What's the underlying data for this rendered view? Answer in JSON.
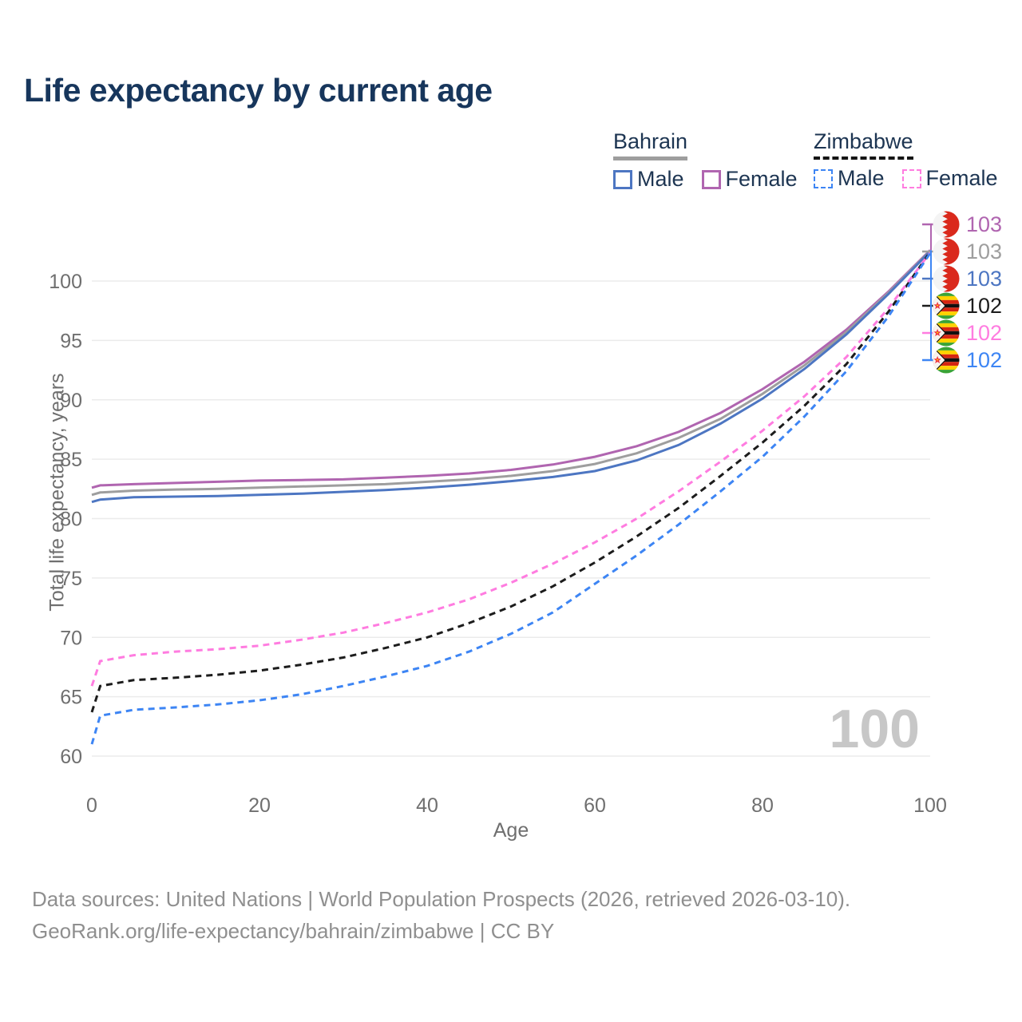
{
  "title": "Life expectancy by current age",
  "legend": {
    "groups": [
      {
        "label": "Bahrain",
        "line_style": "solid",
        "underline_color": "#9e9e9e",
        "items": [
          {
            "label": "Male",
            "color": "#4d76c2",
            "dashed": false
          },
          {
            "label": "Female",
            "color": "#b065b0",
            "dashed": false
          }
        ]
      },
      {
        "label": "Zimbabwe",
        "line_style": "dashed",
        "underline_color": "#141414",
        "items": [
          {
            "label": "Male",
            "color": "#3d85f4",
            "dashed": true
          },
          {
            "label": "Female",
            "color": "#ff7ce0",
            "dashed": true
          }
        ]
      }
    ]
  },
  "watermark": "100",
  "end_labels": [
    {
      "value": "103",
      "color": "#b065b0",
      "flag": "bahrain",
      "series": "Bahrain Female"
    },
    {
      "value": "103",
      "color": "#9e9e9e",
      "flag": "bahrain",
      "series": "Bahrain Total"
    },
    {
      "value": "103",
      "color": "#4d76c2",
      "flag": "bahrain",
      "series": "Bahrain Male"
    },
    {
      "value": "102",
      "color": "#1c1c1c",
      "flag": "zimbabwe",
      "series": "Zimbabwe Total"
    },
    {
      "value": "102",
      "color": "#ff7ce0",
      "flag": "zimbabwe",
      "series": "Zimbabwe Female"
    },
    {
      "value": "102",
      "color": "#3d85f4",
      "flag": "zimbabwe",
      "series": "Zimbabwe Male"
    }
  ],
  "chart_data": {
    "type": "line",
    "title": "Life expectancy by current age",
    "xlabel": "Age",
    "ylabel": "Total life expectancy, years",
    "xlim": [
      0,
      100
    ],
    "ylim": [
      60,
      100
    ],
    "xticks": [
      0,
      20,
      40,
      60,
      80,
      100
    ],
    "yticks": [
      60,
      65,
      70,
      75,
      80,
      85,
      90,
      95,
      100
    ],
    "grid": "horizontal",
    "legend_position": "top-right",
    "x": [
      0,
      1,
      5,
      10,
      15,
      20,
      25,
      30,
      35,
      40,
      45,
      50,
      55,
      60,
      65,
      70,
      75,
      80,
      85,
      90,
      95,
      100
    ],
    "series": [
      {
        "name": "Bahrain Female",
        "color": "#b065b0",
        "dashed": false,
        "end_label": 103,
        "values": [
          82.6,
          82.8,
          82.9,
          83.0,
          83.1,
          83.2,
          83.25,
          83.3,
          83.45,
          83.6,
          83.8,
          84.1,
          84.55,
          85.2,
          86.1,
          87.3,
          88.9,
          90.9,
          93.2,
          95.9,
          99.1,
          102.6
        ]
      },
      {
        "name": "Bahrain Total",
        "color": "#9e9e9e",
        "dashed": false,
        "end_label": 103,
        "values": [
          82.0,
          82.2,
          82.35,
          82.45,
          82.5,
          82.6,
          82.7,
          82.8,
          82.9,
          83.1,
          83.3,
          83.6,
          84.0,
          84.6,
          85.5,
          86.8,
          88.4,
          90.5,
          92.9,
          95.7,
          99.0,
          102.55
        ]
      },
      {
        "name": "Bahrain Male",
        "color": "#4d76c2",
        "dashed": false,
        "end_label": 103,
        "values": [
          81.4,
          81.6,
          81.8,
          81.85,
          81.9,
          82.0,
          82.1,
          82.25,
          82.4,
          82.6,
          82.85,
          83.15,
          83.5,
          84.0,
          84.9,
          86.2,
          88.0,
          90.1,
          92.6,
          95.5,
          98.9,
          102.5
        ]
      },
      {
        "name": "Zimbabwe Total",
        "color": "#1c1c1c",
        "dashed": true,
        "end_label": 102,
        "values": [
          63.7,
          65.9,
          66.4,
          66.6,
          66.85,
          67.2,
          67.7,
          68.3,
          69.1,
          70.0,
          71.2,
          72.6,
          74.3,
          76.3,
          78.5,
          80.9,
          83.6,
          86.4,
          89.5,
          93.0,
          97.4,
          102.45
        ]
      },
      {
        "name": "Zimbabwe Female",
        "color": "#ff7ce0",
        "dashed": true,
        "end_label": 102,
        "values": [
          65.9,
          68.0,
          68.5,
          68.8,
          69.0,
          69.3,
          69.8,
          70.4,
          71.2,
          72.1,
          73.2,
          74.6,
          76.2,
          78.0,
          80.0,
          82.3,
          84.8,
          87.4,
          90.3,
          93.6,
          97.7,
          102.4
        ]
      },
      {
        "name": "Zimbabwe Male",
        "color": "#3d85f4",
        "dashed": true,
        "end_label": 102,
        "values": [
          61.0,
          63.4,
          63.9,
          64.1,
          64.35,
          64.7,
          65.2,
          65.9,
          66.7,
          67.6,
          68.8,
          70.3,
          72.1,
          74.5,
          76.9,
          79.5,
          82.3,
          85.2,
          88.6,
          92.4,
          97.0,
          102.35
        ]
      }
    ]
  },
  "footer": {
    "line1": "Data sources: United Nations | World Population Prospects (2026, retrieved 2026-03-10).",
    "line2": "GeoRank.org/life-expectancy/bahrain/zimbabwe | CC BY"
  }
}
